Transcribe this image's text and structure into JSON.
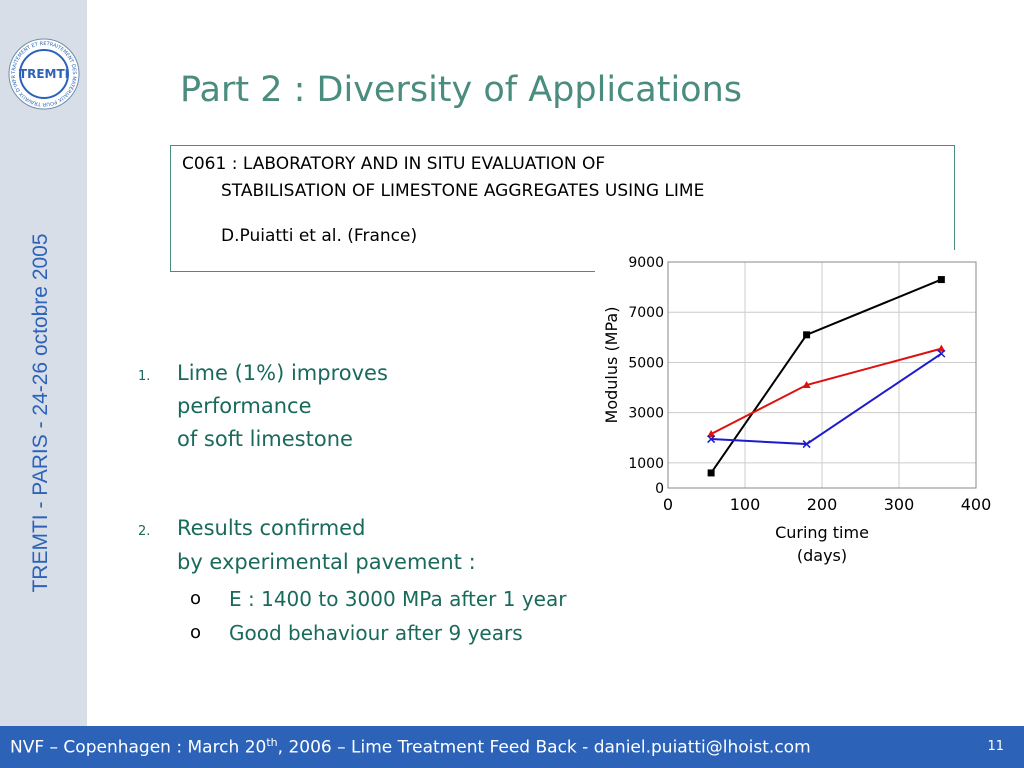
{
  "sidebar": {
    "vertical_text": "TREMTI  -  PARIS - 24-26 octobre 2005",
    "logo": {
      "center_text": "TREMTI",
      "ring_text": "TRAITEMENT ET RETRAITEMENT DES MATÉRIAUX POUR TRAVAUX D'INFRASTRUCTURES"
    }
  },
  "slide": {
    "title": "Part 2 : Diversity of Applications"
  },
  "reference": {
    "line1": "C061 : LABORATORY AND IN SITU EVALUATION OF",
    "line2": "STABILISATION OF LIMESTONE AGGREGATES USING LIME",
    "author": "D.Puiatti et al. (France)"
  },
  "points": [
    {
      "number": "1.",
      "lines": [
        "Lime (1%) improves",
        "performance",
        "of soft limestone"
      ]
    },
    {
      "number": "2.",
      "lines": [
        "Results confirmed",
        "by experimental pavement :"
      ],
      "bullets": [
        {
          "glyph": "o",
          "text": "E : 1400 to 3000 MPa after 1 year"
        },
        {
          "glyph": "o",
          "text": "Good behaviour after 9 years"
        }
      ]
    }
  ],
  "chart_data": {
    "type": "line",
    "title": "",
    "xlabel": "Curing time (days)",
    "xlabel_lines": [
      "Curing time",
      "(days)"
    ],
    "ylabel": "Modulus (MPa)",
    "xlim": [
      0,
      400
    ],
    "ylim": [
      0,
      9000
    ],
    "x_ticks": [
      0,
      100,
      200,
      300,
      400
    ],
    "y_ticks": [
      0,
      1000,
      3000,
      5000,
      7000,
      9000
    ],
    "grid": true,
    "series": [
      {
        "color": "#000000",
        "marker": "square",
        "points": [
          [
            56,
            600
          ],
          [
            180,
            6100
          ],
          [
            355,
            8300
          ]
        ]
      },
      {
        "color": "#dd1111",
        "marker": "triangle",
        "points": [
          [
            56,
            2150
          ],
          [
            180,
            4100
          ],
          [
            355,
            5550
          ]
        ]
      },
      {
        "color": "#1c1ccc",
        "marker": "x",
        "points": [
          [
            56,
            1950
          ],
          [
            180,
            1750
          ],
          [
            355,
            5350
          ]
        ]
      }
    ]
  },
  "footer": {
    "prefix": "NVF – Copenhagen : March 20",
    "superscript": "th",
    "suffix": ", 2006 – Lime Treatment Feed Back - daniel.puiatti@lhoist.com",
    "page_number": "11"
  },
  "colors": {
    "title": "#4a8c7e",
    "body_text": "#1a6a5c",
    "footer_bg": "#2c63b8",
    "sidebar_bg": "#d8dee8"
  }
}
